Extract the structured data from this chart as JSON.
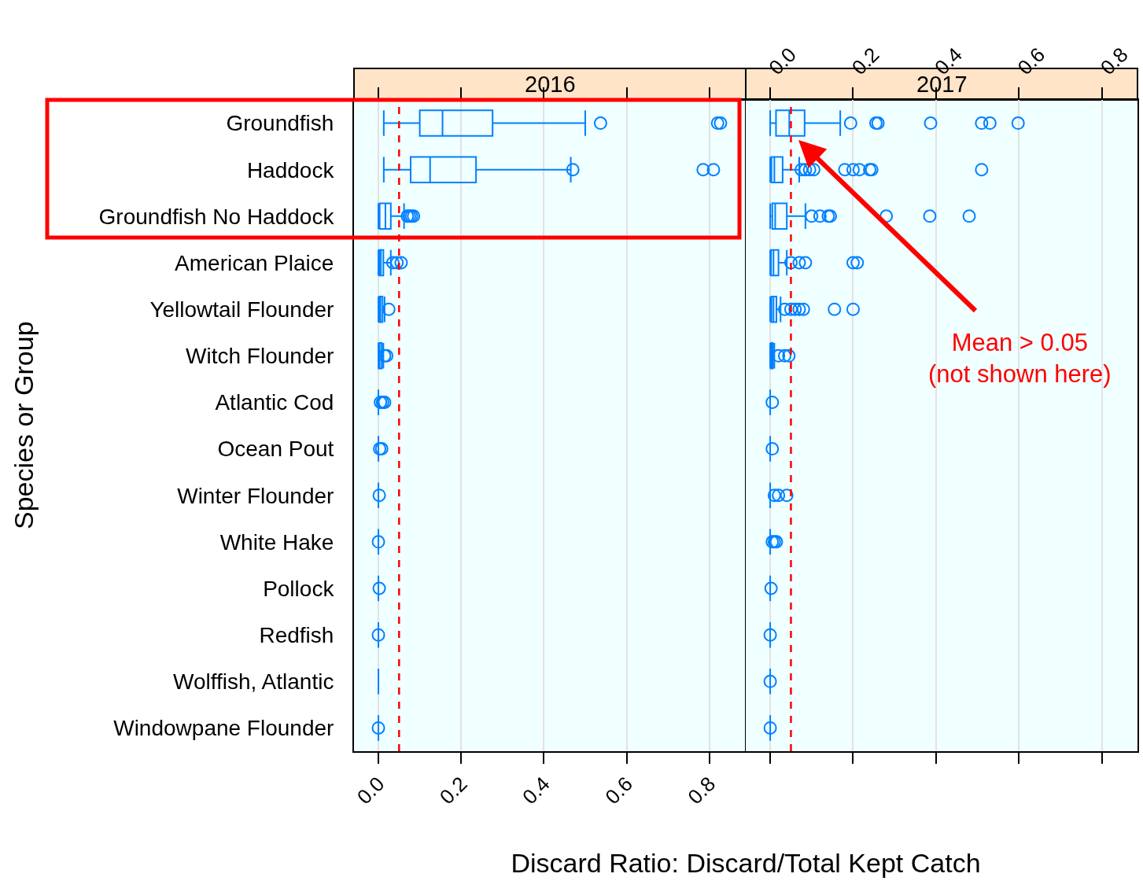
{
  "chart_data": [
    {
      "type": "box",
      "title": "2016",
      "ylabel": "Species or Group",
      "xlabel": "Discard Ratio: Discard/Total Kept Catch",
      "orientation": "horizontal",
      "color": "#0080ff",
      "grid": "x",
      "categories": [
        "Groundfish",
        "Haddock",
        "Groundfish No Haddock",
        "American Plaice",
        "Yellowtail Flounder",
        "Witch Flounder",
        "Atlantic Cod",
        "Ocean Pout",
        "Winter Flounder",
        "White Hake",
        "Pollock",
        "Redfish",
        "Wolffish, Atlantic",
        "Windowpane Flounder"
      ],
      "boxes": [
        {
          "low": 0.013,
          "q1": 0.1,
          "median": 0.155,
          "q3": 0.276,
          "high": 0.5,
          "outliers": [
            0.537,
            0.82,
            0.827
          ]
        },
        {
          "low": 0.013,
          "q1": 0.078,
          "median": 0.125,
          "q3": 0.236,
          "high": 0.465,
          "outliers": [
            0.47,
            0.785,
            0.81
          ]
        },
        {
          "low": 0,
          "q1": 0.003,
          "median": 0.017,
          "q3": 0.03,
          "high": 0.062,
          "outliers": [
            0.07,
            0.075,
            0.08,
            0.085
          ]
        },
        {
          "low": 0,
          "q1": 0.002,
          "median": 0.006,
          "q3": 0.012,
          "high": 0.03,
          "outliers": [
            0.035,
            0.045,
            0.055
          ]
        },
        {
          "low": 0,
          "q1": 0.002,
          "median": 0.005,
          "q3": 0.01,
          "high": 0.015,
          "outliers": [
            0.025
          ]
        },
        {
          "low": 0,
          "q1": 0.001,
          "median": 0.003,
          "q3": 0.008,
          "high": 0.012,
          "outliers": [
            0.015,
            0.02
          ]
        },
        {
          "low": 0,
          "q1": 0,
          "median": 0,
          "q3": 0,
          "high": 0,
          "outliers": [
            0.005,
            0.01,
            0.015
          ]
        },
        {
          "low": 0,
          "q1": 0,
          "median": 0,
          "q3": 0,
          "high": 0,
          "outliers": [
            0.003,
            0.008
          ]
        },
        {
          "low": 0,
          "q1": 0,
          "median": 0,
          "q3": 0,
          "high": 0,
          "outliers": [
            0.002
          ]
        },
        {
          "low": 0,
          "q1": 0,
          "median": 0,
          "q3": 0,
          "high": 0,
          "outliers": [
            0
          ]
        },
        {
          "low": 0,
          "q1": 0,
          "median": 0,
          "q3": 0,
          "high": 0,
          "outliers": [
            0.002
          ]
        },
        {
          "low": 0,
          "q1": 0,
          "median": 0,
          "q3": 0,
          "high": 0,
          "outliers": [
            0
          ]
        },
        {
          "low": 0,
          "q1": 0,
          "median": 0,
          "q3": 0,
          "high": 0
        },
        {
          "low": 0,
          "q1": 0,
          "median": 0,
          "q3": 0,
          "high": 0,
          "outliers": [
            0
          ]
        }
      ],
      "xlim": [
        -0.059,
        0.888
      ],
      "xticks": [
        {
          "value": 0,
          "label": "0.0"
        },
        {
          "value": 0.2,
          "label": "0.2"
        },
        {
          "value": 0.4,
          "label": "0.4"
        },
        {
          "value": 0.6,
          "label": "0.6"
        },
        {
          "value": 0.8,
          "label": "0.8"
        }
      ],
      "ref_lines": [
        {
          "axis": "x",
          "value": 0.05,
          "color": "#ff0000",
          "line_style": "dashed"
        }
      ]
    },
    {
      "type": "box",
      "title": "2017",
      "orientation": "horizontal",
      "color": "#0080ff",
      "grid": "x",
      "tick_labels": "x",
      "boxes": [
        {
          "low": 0,
          "q1": 0.014,
          "median": 0.046,
          "q3": 0.083,
          "high": 0.169,
          "outliers": [
            0.194,
            0.255,
            0.26,
            0.387,
            0.51,
            0.53,
            0.598
          ]
        },
        {
          "low": 0,
          "q1": 0.003,
          "median": 0.01,
          "q3": 0.03,
          "high": 0.07,
          "outliers": [
            0.075,
            0.085,
            0.095,
            0.105,
            0.18,
            0.2,
            0.215,
            0.24,
            0.245,
            0.51
          ]
        },
        {
          "low": 0,
          "q1": 0.005,
          "median": 0.012,
          "q3": 0.04,
          "high": 0.085,
          "outliers": [
            0.1,
            0.12,
            0.14,
            0.145,
            0.28,
            0.385,
            0.48
          ]
        },
        {
          "low": 0,
          "q1": 0.002,
          "median": 0.008,
          "q3": 0.02,
          "high": 0.04,
          "outliers": [
            0.05,
            0.07,
            0.085,
            0.2,
            0.21
          ]
        },
        {
          "low": 0,
          "q1": 0.003,
          "median": 0.008,
          "q3": 0.015,
          "high": 0.025,
          "outliers": [
            0.035,
            0.05,
            0.06,
            0.07,
            0.08,
            0.155,
            0.2
          ]
        },
        {
          "low": 0,
          "q1": 0.002,
          "median": 0.004,
          "q3": 0.006,
          "high": 0.01,
          "outliers": [
            0.02,
            0.035,
            0.045
          ]
        },
        {
          "low": 0,
          "q1": 0,
          "median": 0,
          "q3": 0,
          "high": 0,
          "outliers": [
            0.005
          ]
        },
        {
          "low": 0,
          "q1": 0,
          "median": 0,
          "q3": 0,
          "high": 0,
          "outliers": [
            0.005
          ]
        },
        {
          "low": 0,
          "q1": 0,
          "median": 0,
          "q3": 0,
          "high": 0,
          "outliers": [
            0.01,
            0.02,
            0.04
          ]
        },
        {
          "low": 0,
          "q1": 0,
          "median": 0,
          "q3": 0,
          "high": 0,
          "outliers": [
            0.005,
            0.01,
            0.015
          ]
        },
        {
          "low": 0,
          "q1": 0,
          "median": 0,
          "q3": 0,
          "high": 0,
          "outliers": [
            0.002
          ]
        },
        {
          "low": 0,
          "q1": 0,
          "median": 0,
          "q3": 0,
          "high": 0,
          "outliers": [
            0
          ]
        },
        {
          "low": 0,
          "q1": 0,
          "median": 0,
          "q3": 0,
          "high": 0,
          "outliers": [
            0
          ]
        },
        {
          "low": 0,
          "q1": 0,
          "median": 0,
          "q3": 0,
          "high": 0,
          "outliers": [
            0
          ]
        }
      ],
      "xlim": [
        -0.059,
        0.886
      ],
      "xticks": [
        {
          "value": 0,
          "label": "0.0"
        },
        {
          "value": 0.2,
          "label": "0.2"
        },
        {
          "value": 0.4,
          "label": "0.4"
        },
        {
          "value": 0.6,
          "label": "0.6"
        },
        {
          "value": 0.8,
          "label": "0.8"
        }
      ],
      "ref_lines": [
        {
          "axis": "x",
          "value": 0.05,
          "color": "#ff0000",
          "line_style": "dashed"
        }
      ],
      "annotations": [
        "Mean > 0.05\n(not shown here)"
      ]
    }
  ]
}
